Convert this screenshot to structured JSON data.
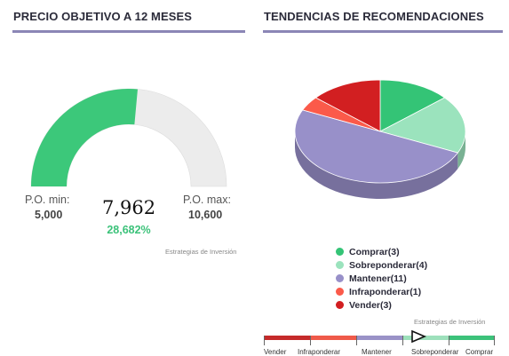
{
  "price_target": {
    "title": "PRECIO OBJETIVO A 12 MESES",
    "min_label": "P.O. min:",
    "min_value": "5,000",
    "max_label": "P.O. max:",
    "max_value": "10,600",
    "current_value": "7,962",
    "change_pct": "28,682%",
    "credit": "Estrategias de Inversión"
  },
  "recommendations": {
    "title": "TENDENCIAS DE RECOMENDACIONES",
    "credit": "Estrategias de Inversión",
    "scale_labels": [
      "Vender",
      "Infraponderar",
      "Mantener",
      "Sobreponderar",
      "Comprar"
    ],
    "scale_marker_value": 2.85
  },
  "chart_data": [
    {
      "type": "gauge",
      "min": 5.0,
      "max": 10.6,
      "value": 7.962,
      "colors": {
        "filled": "#3cc87a",
        "empty": "#ececec"
      }
    },
    {
      "type": "pie",
      "categories": [
        "Comprar(3)",
        "Sobreponderar(4)",
        "Mantener(11)",
        "Infraponderar(1)",
        "Vender(3)"
      ],
      "values": [
        3,
        4,
        11,
        1,
        3
      ],
      "colors": [
        "#34c476",
        "#9be3bd",
        "#9890c9",
        "#fb5a4a",
        "#d21f21"
      ],
      "legend": "bottom"
    }
  ]
}
